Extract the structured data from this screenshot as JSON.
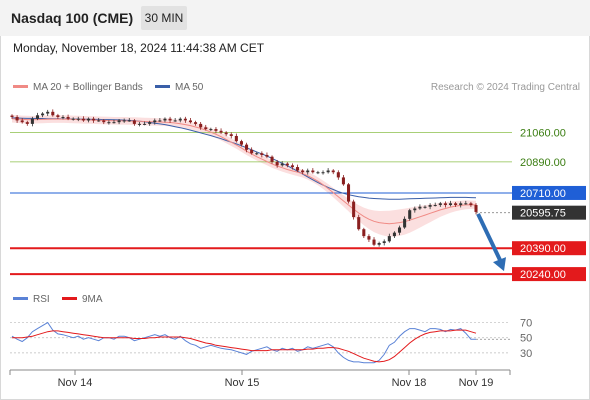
{
  "header": {
    "title": "Nasdaq 100 (CME)",
    "timeframe": "30 MIN"
  },
  "date_line": "Monday, November 18, 2024 11:44:38 AM CET",
  "colors": {
    "ma20": "#f08a85",
    "ma50": "#3a5fa8",
    "bollinger_fill": "#f9d4d4",
    "support": "#e31a1c",
    "resistance_green": "#8bbf4a",
    "pivot": "#1f5fd6",
    "last_price_bg": "#333333",
    "rsi": "#5a82d6",
    "rsi_ma": "#e31a1c",
    "arrow": "#2e6db4",
    "candle_up": "#333333",
    "candle_down": "#8a1f1f"
  },
  "legend": {
    "ma20": "MA 20 + Bollinger Bands",
    "ma50": "MA 50",
    "credit": "Research © 2024 Trading Central"
  },
  "rsi_legend": {
    "rsi": "RSI",
    "ma": "9MA"
  },
  "chart_data": [
    {
      "type": "candlestick",
      "title": "Nasdaq 100 (CME)",
      "timeframe": "30 MIN",
      "x_tick_labels": [
        "Nov 14",
        "Nov 15",
        "Nov 18",
        "Nov 19"
      ],
      "ylim": [
        20200,
        21260
      ],
      "price_levels": [
        {
          "label": "21060.00",
          "value": 21060,
          "kind": "resistance"
        },
        {
          "label": "20890.00",
          "value": 20890,
          "kind": "resistance"
        },
        {
          "label": "20710.00",
          "value": 20710,
          "kind": "pivot"
        },
        {
          "label": "20595.75",
          "value": 20595.75,
          "kind": "last"
        },
        {
          "label": "20390.00",
          "value": 20390,
          "kind": "support"
        },
        {
          "label": "20240.00",
          "value": 20240,
          "kind": "support"
        }
      ],
      "closes": [
        21150,
        21130,
        21120,
        21110,
        21140,
        21160,
        21170,
        21180,
        21160,
        21150,
        21150,
        21140,
        21140,
        21140,
        21130,
        21140,
        21130,
        21130,
        21120,
        21120,
        21120,
        21130,
        21130,
        21130,
        21110,
        21110,
        21110,
        21120,
        21130,
        21130,
        21140,
        21130,
        21130,
        21140,
        21130,
        21120,
        21110,
        21090,
        21080,
        21080,
        21070,
        21060,
        21050,
        21040,
        21010,
        20990,
        20960,
        20940,
        20940,
        20930,
        20920,
        20890,
        20870,
        20880,
        20870,
        20860,
        20840,
        20830,
        20840,
        20830,
        20830,
        20830,
        20840,
        20830,
        20800,
        20760,
        20660,
        20570,
        20500,
        20460,
        20440,
        20410,
        20420,
        20430,
        20460,
        20480,
        20510,
        20560,
        20610,
        20620,
        20630,
        20630,
        20640,
        20640,
        20650,
        20640,
        20650,
        20640,
        20650,
        20650,
        20640,
        20600
      ],
      "ma20": [
        21140,
        21138,
        21136,
        21135,
        21134,
        21135,
        21136,
        21137,
        21138,
        21138,
        21138,
        21137,
        21136,
        21135,
        21134,
        21133,
        21132,
        21131,
        21130,
        21129,
        21128,
        21128,
        21128,
        21127,
        21126,
        21125,
        21124,
        21123,
        21122,
        21121,
        21120,
        21118,
        21115,
        21111,
        21106,
        21100,
        21092,
        21084,
        21074,
        21062,
        21050,
        21036,
        21020,
        21004,
        20988,
        20970,
        20952,
        20936,
        20920,
        20906,
        20892,
        20878,
        20866,
        20856,
        20846,
        20838,
        20830,
        20822,
        20810,
        20795,
        20778,
        20758,
        20736,
        20712,
        20688,
        20664,
        20640,
        20616,
        20594,
        20574,
        20558,
        20546,
        20538,
        20534,
        20532,
        20534,
        20538,
        20544,
        20552,
        20562,
        20572,
        20582,
        20592,
        20602,
        20612,
        20620,
        20628,
        20634,
        20638,
        20641,
        20642,
        20641
      ],
      "ma50": [
        21145,
        21144,
        21143,
        21142,
        21142,
        21141,
        21141,
        21140,
        21140,
        21140,
        21139,
        21139,
        21138,
        21138,
        21137,
        21137,
        21136,
        21136,
        21135,
        21135,
        21134,
        21133,
        21132,
        21130,
        21128,
        21125,
        21122,
        21118,
        21114,
        21110,
        21106,
        21100,
        21094,
        21088,
        21081,
        21074,
        21066,
        21058,
        21050,
        21042,
        21033,
        21024,
        21014,
        21004,
        20994,
        20983,
        20972,
        20960,
        20948,
        20936,
        20924,
        20910,
        20896,
        20882,
        20868,
        20852,
        20836,
        20820,
        20803,
        20786,
        20770,
        20756,
        20742,
        20730,
        20718,
        20708,
        20700,
        20694,
        20688,
        20684,
        20680,
        20678,
        20676,
        20675,
        20674,
        20674,
        20674,
        20675,
        20676,
        20677,
        20678,
        20679,
        20680,
        20681,
        20682,
        20683,
        20684,
        20684,
        20684,
        20684,
        20683,
        20682
      ]
    },
    {
      "type": "line",
      "title": "RSI",
      "series": [
        {
          "name": "RSI",
          "values": [
            52,
            48,
            45,
            50,
            58,
            62,
            66,
            70,
            60,
            55,
            54,
            52,
            50,
            52,
            48,
            50,
            48,
            46,
            50,
            50,
            48,
            52,
            52,
            50,
            46,
            48,
            50,
            52,
            54,
            52,
            54,
            50,
            48,
            52,
            46,
            42,
            40,
            36,
            38,
            40,
            38,
            36,
            35,
            34,
            32,
            30,
            28,
            32,
            34,
            36,
            38,
            34,
            32,
            36,
            34,
            36,
            32,
            34,
            38,
            36,
            38,
            40,
            42,
            38,
            30,
            24,
            20,
            18,
            18,
            17,
            17,
            17,
            20,
            28,
            40,
            44,
            52,
            58,
            62,
            62,
            60,
            58,
            62,
            62,
            61,
            58,
            61,
            60,
            62,
            56,
            48,
            48
          ]
        },
        {
          "name": "9MA",
          "values": [
            50,
            50,
            50,
            51,
            52,
            54,
            56,
            58,
            59,
            59,
            58,
            57,
            56,
            55,
            54,
            53,
            52,
            51,
            50,
            50,
            50,
            50,
            50,
            50,
            49,
            49,
            49,
            50,
            50,
            51,
            51,
            51,
            51,
            51,
            50,
            49,
            47,
            45,
            43,
            42,
            40,
            39,
            38,
            37,
            36,
            35,
            34,
            33,
            33,
            33,
            33,
            34,
            34,
            34,
            34,
            34,
            34,
            34,
            35,
            35,
            36,
            36,
            37,
            37,
            36,
            34,
            32,
            29,
            26,
            23,
            21,
            19,
            18,
            19,
            21,
            25,
            31,
            37,
            43,
            48,
            52,
            55,
            57,
            58,
            59,
            59,
            59,
            60,
            60,
            60,
            58,
            56
          ]
        }
      ],
      "y_tick_labels": [
        "70",
        "50",
        "30"
      ],
      "ylim": [
        10,
        80
      ]
    }
  ]
}
